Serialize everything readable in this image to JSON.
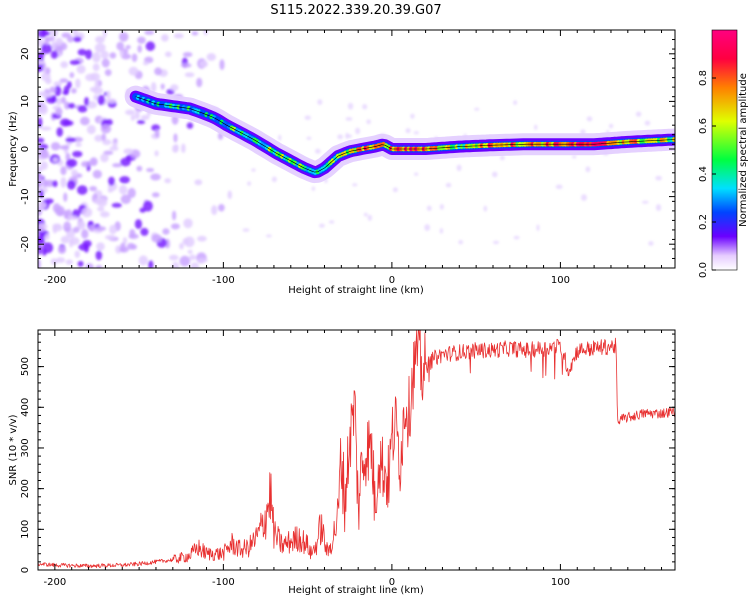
{
  "title": "S115.2022.339.20.39.G07",
  "chart_data": [
    {
      "type": "heatmap",
      "xlabel": "Height of straight line (km)",
      "ylabel": "Frequency (Hz)",
      "xlim": [
        -210,
        168
      ],
      "ylim": [
        -25,
        25
      ],
      "x_ticks": [
        -200,
        -100,
        0,
        100
      ],
      "x_tick_labels": [
        "-200",
        "-100",
        "0",
        "100"
      ],
      "y_ticks": [
        -20,
        -10,
        0,
        10,
        20
      ],
      "y_tick_labels": [
        "-20",
        "-10",
        "0",
        "10",
        "20"
      ],
      "colorbar": {
        "label": "Normalized spectral amplitude",
        "range": [
          0,
          1
        ],
        "ticks": [
          0.0,
          0.2,
          0.4,
          0.6,
          0.8
        ],
        "tick_labels": [
          "0.0",
          "0.2",
          "0.4",
          "0.6",
          "0.8"
        ],
        "colormap": [
          "#ffffff",
          "#6a00ff",
          "#0044ff",
          "#00e0ff",
          "#00ff40",
          "#e0ff00",
          "#ff8000",
          "#ff0040",
          "#ff0080"
        ]
      },
      "ridge": {
        "x": [
          -152,
          -140,
          -130,
          -120,
          -112,
          -105,
          -98,
          -90,
          -82,
          -75,
          -68,
          -60,
          -52,
          -45,
          -40,
          -32,
          -25,
          -18,
          -10,
          -5,
          0,
          10,
          20,
          40,
          60,
          80,
          100,
          120,
          140,
          168
        ],
        "frequency": [
          11,
          9.5,
          9,
          8.5,
          7.5,
          6.5,
          5,
          3.5,
          2,
          0.5,
          -1,
          -2.5,
          -4,
          -5,
          -4,
          -1.5,
          -0.5,
          0,
          0.5,
          1,
          0,
          0,
          0,
          0.5,
          0.8,
          1,
          1,
          1,
          1.5,
          2
        ],
        "peak_amplitude": [
          0.2,
          0.35,
          0.4,
          0.4,
          0.35,
          0.4,
          0.4,
          0.45,
          0.4,
          0.45,
          0.5,
          0.45,
          0.45,
          0.5,
          0.45,
          0.5,
          0.6,
          0.7,
          0.8,
          0.6,
          0.75,
          0.8,
          0.8,
          0.5,
          0.8,
          0.7,
          0.8,
          0.85,
          0.7,
          0.55
        ]
      },
      "noise_region": {
        "x_range": [
          -210,
          -95
        ],
        "frequency_range": [
          -25,
          25
        ],
        "amplitude": 0.1
      }
    },
    {
      "type": "line",
      "xlabel": "Height of straight line (km)",
      "ylabel": "SNR (10 * v/v)",
      "xlim": [
        -210,
        168
      ],
      "ylim": [
        0,
        590
      ],
      "x_ticks": [
        -200,
        -100,
        0,
        100
      ],
      "x_tick_labels": [
        "-200",
        "-100",
        "0",
        "100"
      ],
      "y_ticks": [
        0,
        100,
        200,
        300,
        400,
        500
      ],
      "y_tick_labels": [
        "0",
        "100",
        "200",
        "300",
        "400",
        "500"
      ],
      "color": "#e83030",
      "series": [
        {
          "x": [
            -210,
            -200,
            -180,
            -160,
            -150,
            -140,
            -130,
            -120,
            -115,
            -110,
            -100,
            -95,
            -90,
            -85,
            -80,
            -75,
            -72,
            -70,
            -65,
            -60,
            -55,
            -50,
            -48,
            -45,
            -42,
            -40,
            -38,
            -35,
            -32,
            -30,
            -28,
            -25,
            -22,
            -20,
            -18,
            -15,
            -12,
            -10,
            -8,
            -5,
            -2,
            0,
            2,
            5,
            8,
            10,
            12,
            15,
            18,
            20,
            25,
            30,
            40,
            50,
            60,
            70,
            80,
            90,
            100,
            105,
            110,
            120,
            130,
            133,
            134,
            136,
            140,
            150,
            160,
            168
          ],
          "y": [
            15,
            12,
            10,
            12,
            15,
            20,
            25,
            35,
            55,
            40,
            40,
            65,
            50,
            55,
            80,
            130,
            190,
            90,
            60,
            70,
            80,
            60,
            40,
            60,
            110,
            70,
            40,
            80,
            130,
            280,
            170,
            320,
            410,
            150,
            250,
            300,
            300,
            150,
            280,
            250,
            220,
            320,
            360,
            270,
            420,
            380,
            470,
            540,
            480,
            500,
            520,
            530,
            535,
            540,
            540,
            545,
            540,
            545,
            550,
            490,
            540,
            545,
            550,
            550,
            360,
            370,
            375,
            385,
            385,
            390
          ]
        }
      ]
    }
  ]
}
